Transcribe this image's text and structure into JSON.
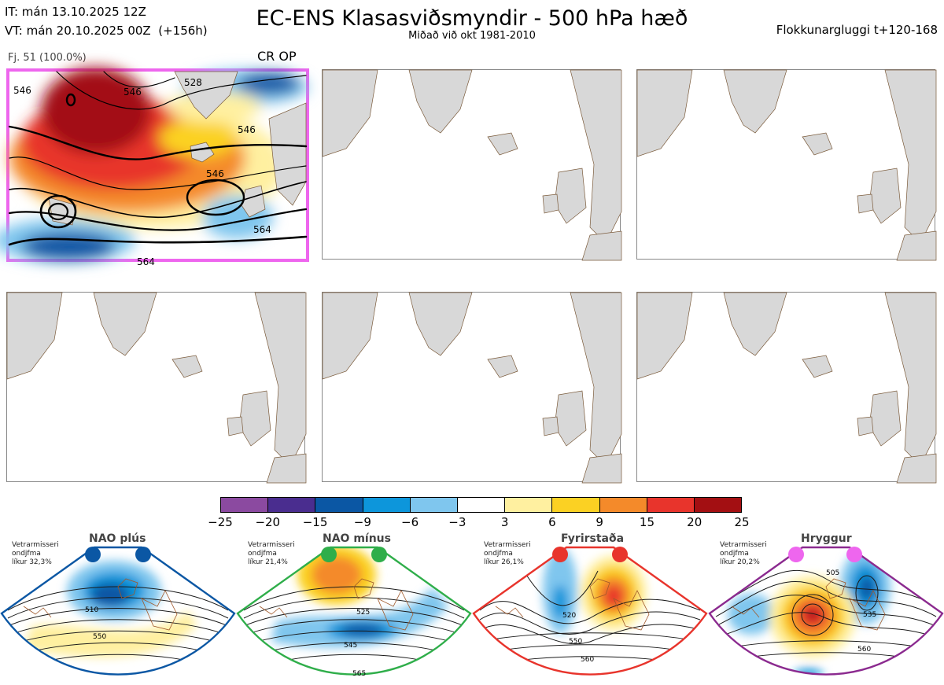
{
  "header": {
    "it_line": "IT: mán 13.10.2025 12Z",
    "vt_line": "VT: mán 20.10.2025 00Z  (+156h)",
    "title": "EC-ENS Klasasviðsmyndir - 500 hPa hæð",
    "subtitle": "Miðað við okt 1981-2010",
    "window": "Flokkunargluggi t+120-168"
  },
  "panel1": {
    "label": "Fj. 51 (100.0%)",
    "tag": "CR OP",
    "contours": [
      "546",
      "528",
      "546",
      "546",
      "564",
      "564",
      "546"
    ]
  },
  "colorbar": {
    "colors": [
      "#8b4aa0",
      "#4a2d8f",
      "#0b57a4",
      "#0d96db",
      "#7fc6ee",
      "#ffffff",
      "#fff0a0",
      "#fbd123",
      "#f48a2a",
      "#e8342c",
      "#a30f12"
    ],
    "ticks": [
      "−25",
      "−20",
      "−15",
      "−9",
      "−6",
      "−3",
      "3",
      "6",
      "9",
      "15",
      "20",
      "25"
    ]
  },
  "regimes": [
    {
      "name": "NAO plús",
      "note_l1": "Vetrarmisseri",
      "note_l2": "ondjfma",
      "note_l3": "líkur 32,3%",
      "color": "#0b57a4",
      "labels": [
        "510",
        "550"
      ]
    },
    {
      "name": "NAO mínus",
      "note_l1": "Vetrarmisseri",
      "note_l2": "ondjfma",
      "note_l3": "líkur 21,4%",
      "color": "#2fae4a",
      "labels": [
        "525",
        "545",
        "565"
      ]
    },
    {
      "name": "Fyrirstaða",
      "note_l1": "Vetrarmisseri",
      "note_l2": "ondjfma",
      "note_l3": "líkur 26,1%",
      "color": "#e8342c",
      "labels": [
        "520",
        "550",
        "560"
      ]
    },
    {
      "name": "Hryggur",
      "note_l1": "Vetrarmisseri",
      "note_l2": "ondjfma",
      "note_l3": "líkur 20,2%",
      "color": "#ee66ee",
      "labels": [
        "505",
        "535",
        "560"
      ]
    }
  ]
}
